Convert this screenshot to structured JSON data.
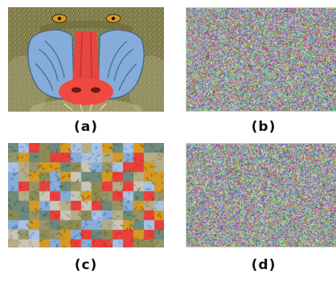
{
  "captions": {
    "a": "(a)",
    "b": "(b)",
    "c": "(c)",
    "d": "(d)"
  },
  "colors": {
    "fur": "#8f8b56",
    "nose_red": "#e8413c",
    "cheek_blue": "#7fa6d8",
    "eye_amber": "#d59a22",
    "frame_green": "#b9d3b0"
  }
}
